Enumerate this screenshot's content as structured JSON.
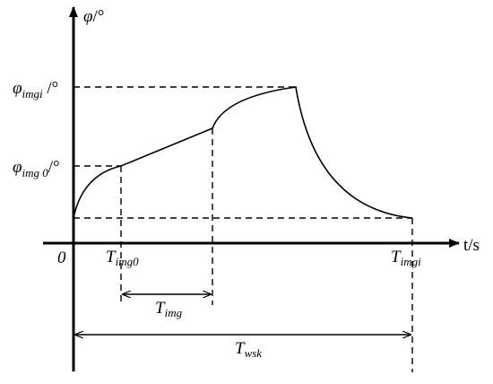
{
  "axes": {
    "y_label": {
      "main": "φ",
      "rest": "/°"
    },
    "x_label": "t/s",
    "origin": "0"
  },
  "levels": [
    {
      "main": "φ",
      "sub": "imgi",
      "rest": " /°"
    },
    {
      "main": "φ",
      "sub": "img 0",
      "rest": "/°"
    }
  ],
  "times": [
    {
      "main": "T",
      "sub": "img0"
    },
    {
      "main": "T",
      "sub": "imgi"
    }
  ],
  "intervals": [
    {
      "main": "T",
      "sub": "img"
    },
    {
      "main": "T",
      "sub": "wsk"
    }
  ]
}
